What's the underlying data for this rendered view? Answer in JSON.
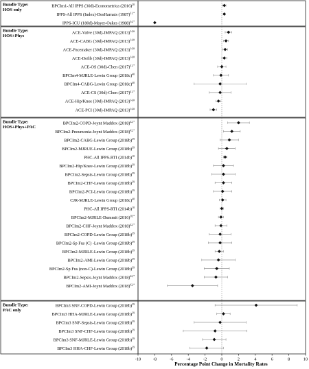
{
  "chart_data": {
    "type": "scatter",
    "subtype": "forest-plot",
    "xlabel": "Percentage Point Change in Mortality Rates",
    "xlim": [
      -10,
      10
    ],
    "xticks": [
      -10,
      -8,
      -6,
      -4,
      -2,
      0,
      2,
      4,
      6,
      8,
      10
    ],
    "reference_line": 0,
    "groups": [
      {
        "label_line1": "Bundle Type:",
        "label_line2": "HOS only",
        "rows": [
          {
            "label": "BPCIm1-All IPPS (30d)-Econometrica (2016)",
            "sup": "20",
            "value": 0.3,
            "ci": [
              0.1,
              0.5
            ]
          },
          {
            "label": "IPPS-All IPPS (Index)-DesHarnais (1987)",
            "sup": "31,*",
            "value": 0.3,
            "ci": [
              0.2,
              0.4
            ]
          },
          {
            "label": "IPPS-ICU (180d)-Mayer-Oakes (1988)",
            "sup": "34,*",
            "value": -8.0,
            "ci": [
              -8.0,
              -8.0
            ]
          }
        ]
      },
      {
        "label_line1": "Bundle Type:",
        "label_line2": "HOS+Phys",
        "rows": [
          {
            "label": "ACE-Valve (30d)-IMPAQ (2013)",
            "sup": "14,#",
            "value": 0.8,
            "ci": [
              0.4,
              1.2
            ]
          },
          {
            "label": "ACE-CABG (30d)-IMPAQ (2013)",
            "sup": "14,#",
            "value": 0.5,
            "ci": [
              0.2,
              0.8
            ]
          },
          {
            "label": "ACE-Pacemaker (30d)-IMPAQ (2013)",
            "sup": "14,#",
            "value": 0.4,
            "ci": [
              0.1,
              0.7
            ]
          },
          {
            "label": "ACE-Defib (30d)-IMPAQ (2013)",
            "sup": "14,#",
            "value": 0.3,
            "ci": [
              0.0,
              0.6
            ]
          },
          {
            "label": "ACE-OS (30d)-Chen (2017)",
            "sup": "41,*",
            "value": 0.0,
            "ci": [
              -0.5,
              0.5
            ]
          },
          {
            "label": "BPCIm4-MJRLE-Lewin Group (2018c)",
            "sup": "40",
            "value": -0.1,
            "ci": [
              -1.0,
              0.8
            ]
          },
          {
            "label": "BPCIm4-CABG-Lewin Group (2018c)",
            "sup": "40",
            "value": -0.2,
            "ci": [
              -3.3,
              2.9
            ]
          },
          {
            "label": "ACE-CS (30d)-Chen (2017)",
            "sup": "41,*",
            "value": -0.2,
            "ci": [
              -1.5,
              1.1
            ]
          },
          {
            "label": "ACE-Hip/Knee (30d)-IMPAQ (2013)",
            "sup": "14,#",
            "value": -0.4,
            "ci": [
              -0.7,
              -0.1
            ]
          },
          {
            "label": "ACE-PCI (30d)-IMPAQ (2013)",
            "sup": "14,#",
            "value": -1.0,
            "ci": [
              -1.4,
              -0.6
            ]
          }
        ]
      },
      {
        "label_line1": "Bundle Type:",
        "label_line2": "HOS+Phys+PAC",
        "rows": [
          {
            "label": "BPCIm2-COPD-Joynt Maddox (2018)",
            "sup": "42,*",
            "value": 2.0,
            "ci": [
              0.7,
              3.3
            ]
          },
          {
            "label": "BPCIm2-Pneumonia-Joynt Maddox (2018)",
            "sup": "42,*",
            "value": 1.2,
            "ci": [
              0.2,
              2.2
            ]
          },
          {
            "label": "BPCIm2-CABG-Lewin Group (2018b)",
            "sup": "39",
            "value": 0.9,
            "ci": [
              -0.2,
              2.0
            ]
          },
          {
            "label": "BPCIm2-MJRUE-Lewin Group (2018b)",
            "sup": "39",
            "value": 0.6,
            "ci": [
              -0.4,
              1.6
            ]
          },
          {
            "label": "PHC-All IPPS-RTI (2014b)",
            "sup": "10",
            "value": 0.4,
            "ci": [
              0.2,
              0.6
            ]
          },
          {
            "label": "BPCIm2-Hip/Knee-Lewin Group (2018b)",
            "sup": "39",
            "value": 0.2,
            "ci": [
              -1.0,
              1.4
            ]
          },
          {
            "label": "BPCIm2-Sepsis-Lewin Group (2018b)",
            "sup": "39",
            "value": 0.2,
            "ci": [
              -1.2,
              1.6
            ]
          },
          {
            "label": "BPCIm2-CHF-Lewin Group (2018b)",
            "sup": "39",
            "value": 0.2,
            "ci": [
              -0.8,
              1.2
            ]
          },
          {
            "label": "BPCIm2-PCI-Lewin Group (2018b)",
            "sup": "39",
            "value": 0.1,
            "ci": [
              -1.0,
              1.2
            ]
          },
          {
            "label": "CJR-MJRLE-Lewin Group (2018c)",
            "sup": "40",
            "value": 0.1,
            "ci": [
              -0.3,
              0.5
            ]
          },
          {
            "label": "PHC-All IPPS-RTI (2014b)",
            "sup": "10",
            "value": 0.0,
            "ci": [
              -0.2,
              0.2
            ]
          },
          {
            "label": "BPCIm2-MJRLE-Dummit (2016)",
            "sup": "18,*",
            "value": -0.1,
            "ci": [
              -0.4,
              0.2
            ]
          },
          {
            "label": "BPCIm2-CHF-Joynt Maddox (2018)",
            "sup": "42,*",
            "value": -0.1,
            "ci": [
              -0.8,
              0.6
            ]
          },
          {
            "label": "BPCIm2-COPD-Lewin Group (2018b)",
            "sup": "39",
            "value": -0.2,
            "ci": [
              -1.5,
              1.1
            ]
          },
          {
            "label": "BPCIm2-Sp Fus (C) -Lewin Group (2018b)",
            "sup": "39",
            "value": -0.2,
            "ci": [
              -1.6,
              1.2
            ]
          },
          {
            "label": "BPCIm2-MJRLE-Lewin Group (2018b)",
            "sup": "39",
            "value": -0.3,
            "ci": [
              -0.8,
              0.2
            ]
          },
          {
            "label": "BPCIm2-AMI-Lewin Group (2018b)",
            "sup": "39",
            "value": -0.4,
            "ci": [
              -2.4,
              1.6
            ]
          },
          {
            "label": "BPCIm2-Sp Fus (non-C)-Lewin Group (2018b)",
            "sup": "39",
            "value": -0.6,
            "ci": [
              -2.1,
              0.9
            ]
          },
          {
            "label": "BPCIm2-Sepsis-Joynt Maddox (2018)",
            "sup": "42,*",
            "value": -0.7,
            "ci": [
              -2.1,
              0.7
            ]
          },
          {
            "label": "BPCIm2-AMI-Joynt Maddox (2018)",
            "sup": "42,*",
            "value": -3.5,
            "ci": [
              -6.5,
              -0.5
            ]
          }
        ]
      },
      {
        "label_line1": "Bundle Type:",
        "label_line2": "PAC only",
        "rows": [
          {
            "label": "BPCIm3 SNF-COPD-Lewin Group (2018b)",
            "sup": "39",
            "value": 4.1,
            "ci": [
              -0.8,
              9.0
            ]
          },
          {
            "label": "BPCIm3 HHA-MJRLE-Lewin Group (2018b)",
            "sup": "39",
            "value": 0.2,
            "ci": [
              -0.6,
              1.0
            ]
          },
          {
            "label": "BPCIm3 SNF-Sepsis-Lewin Group (2018b)",
            "sup": "39",
            "value": -0.2,
            "ci": [
              -3.3,
              2.9
            ]
          },
          {
            "label": "BPCIm3 SNF-CHF-Lewin Group (2018b)",
            "sup": "39",
            "value": -0.8,
            "ci": [
              -4.6,
              3.0
            ]
          },
          {
            "label": "BPCIm3 SNF-MJRLE-Lewin Group (2018b)",
            "sup": "39",
            "value": -0.9,
            "ci": [
              -2.3,
              0.5
            ]
          },
          {
            "label": "BPCIm3 HHA-CHF-Lewin Group (2018b)",
            "sup": "39",
            "value": -1.8,
            "ci": [
              -3.8,
              0.2
            ]
          }
        ]
      }
    ]
  }
}
